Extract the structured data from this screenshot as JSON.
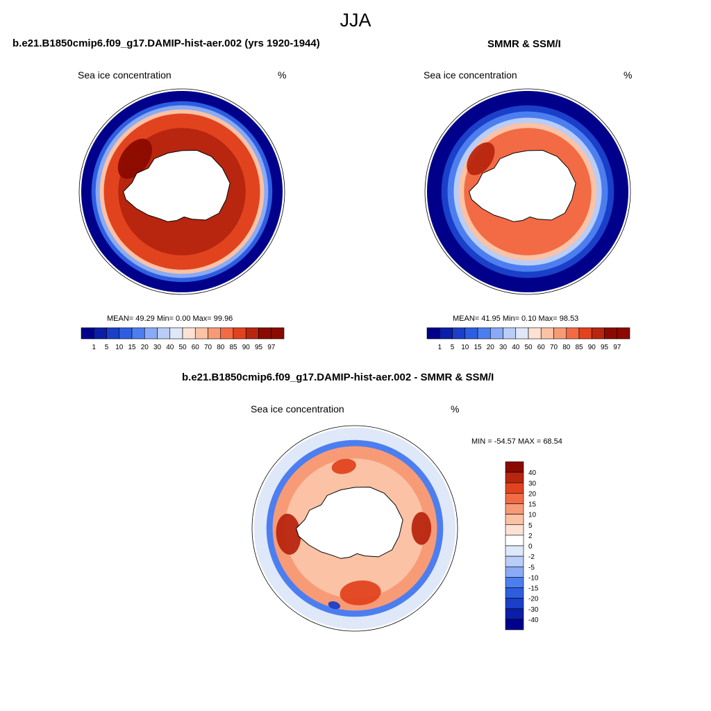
{
  "figure": {
    "season_title": "JJA"
  },
  "panels": {
    "model": {
      "title": "b.e21.B1850cmip6.f09_g17.DAMIP-hist-aer.002 (yrs 1920-1944)",
      "left_label": "Sea ice concentration",
      "right_label": "%",
      "stats": "MEAN=  49.29  Min=    0.00  Max=   99.96"
    },
    "obs": {
      "title": "SMMR & SSM/I",
      "left_label": "Sea ice concentration",
      "right_label": "%",
      "stats": "MEAN=  41.95  Min=    0.10  Max=  98.53"
    },
    "diff": {
      "title": "b.e21.B1850cmip6.f09_g17.DAMIP-hist-aer.002 - SMMR & SSM/I",
      "left_label": "Sea ice concentration",
      "right_label": "%",
      "stats": "MIN = -54.57 MAX =  68.54"
    }
  },
  "colorbars": {
    "concentration": {
      "labels": [
        "1",
        "5",
        "10",
        "15",
        "20",
        "30",
        "40",
        "50",
        "60",
        "70",
        "80",
        "85",
        "90",
        "95",
        "97"
      ],
      "colors": [
        "#00008b",
        "#0a1ea8",
        "#1a3fc8",
        "#2e5ee0",
        "#4c7ef0",
        "#8aaaf5",
        "#b9cdf6",
        "#dfe8f8",
        "#fde2d3",
        "#fbc2a5",
        "#f79b77",
        "#f26b45",
        "#e2431f",
        "#b8260f",
        "#8b0a00"
      ]
    },
    "difference": {
      "labels": [
        "40",
        "30",
        "20",
        "15",
        "10",
        "5",
        "2",
        "0",
        "-2",
        "-5",
        "-10",
        "-15",
        "-20",
        "-30",
        "-40"
      ],
      "colors": [
        "#8b0a00",
        "#b8260f",
        "#e2431f",
        "#f26b45",
        "#f79b77",
        "#fbc2a5",
        "#fde2d3",
        "#ffffff",
        "#dfe8f8",
        "#b9cdf6",
        "#8aaaf5",
        "#4c7ef0",
        "#2e5ee0",
        "#1a3fc8",
        "#0a1ea8",
        "#00008b"
      ]
    }
  },
  "maps": {
    "model": {
      "rings": [
        {
          "level": 1,
          "color": "#00008b",
          "outer": 0.98,
          "inner": 0.88
        },
        {
          "level": 2,
          "color": "#2e5ee0",
          "outer": 0.88,
          "inner": 0.84
        },
        {
          "level": 3,
          "color": "#8aaaf5",
          "outer": 0.84,
          "inner": 0.8
        },
        {
          "level": 4,
          "color": "#fbc2a5",
          "outer": 0.8,
          "inner": 0.76
        },
        {
          "level": 5,
          "color": "#e2431f",
          "outer": 0.76,
          "inner": 0.5
        },
        {
          "level": 6,
          "color": "#b8260f",
          "outer": 0.62,
          "inner": 0.52
        }
      ],
      "blobs": [
        {
          "name": "weddell-core",
          "color": "#8b0a00",
          "r": 0.62,
          "theta": 305,
          "size": 0.22
        }
      ]
    },
    "obs": {
      "rings": [
        {
          "level": 1,
          "color": "#00008b",
          "outer": 0.98,
          "inner": 0.84
        },
        {
          "level": 2,
          "color": "#1a3fc8",
          "outer": 0.84,
          "inner": 0.78
        },
        {
          "level": 3,
          "color": "#4c7ef0",
          "outer": 0.78,
          "inner": 0.72
        },
        {
          "level": 4,
          "color": "#b9cdf6",
          "outer": 0.72,
          "inner": 0.67
        },
        {
          "level": 5,
          "color": "#fbc2a5",
          "outer": 0.67,
          "inner": 0.62
        },
        {
          "level": 6,
          "color": "#f26b45",
          "outer": 0.62,
          "inner": 0.5
        }
      ],
      "blobs": [
        {
          "name": "weddell-core",
          "color": "#b8260f",
          "r": 0.62,
          "theta": 305,
          "size": 0.18
        }
      ]
    },
    "diff": {
      "rings": [
        {
          "level": 1,
          "color": "#dfe8f8",
          "outer": 0.98,
          "inner": 0.86
        },
        {
          "level": 2,
          "color": "#4c7ef0",
          "outer": 0.86,
          "inner": 0.8
        },
        {
          "level": 3,
          "color": "#f79b77",
          "outer": 0.8,
          "inner": 0.68
        },
        {
          "level": 4,
          "color": "#fbc2a5",
          "outer": 0.68,
          "inner": 0.5
        }
      ],
      "blobs": [
        {
          "name": "east-pos",
          "color": "#b8260f",
          "r": 0.72,
          "theta": 90,
          "size": 0.16
        },
        {
          "name": "west-pos",
          "color": "#b8260f",
          "r": 0.72,
          "theta": 265,
          "size": 0.2
        },
        {
          "name": "ross-pos",
          "color": "#e2431f",
          "r": 0.7,
          "theta": 175,
          "size": 0.2
        },
        {
          "name": "north-pos",
          "color": "#e2431f",
          "r": 0.68,
          "theta": 350,
          "size": 0.12
        },
        {
          "name": "neg-patch",
          "color": "#1a3fc8",
          "r": 0.86,
          "theta": 195,
          "size": 0.06
        }
      ]
    }
  }
}
